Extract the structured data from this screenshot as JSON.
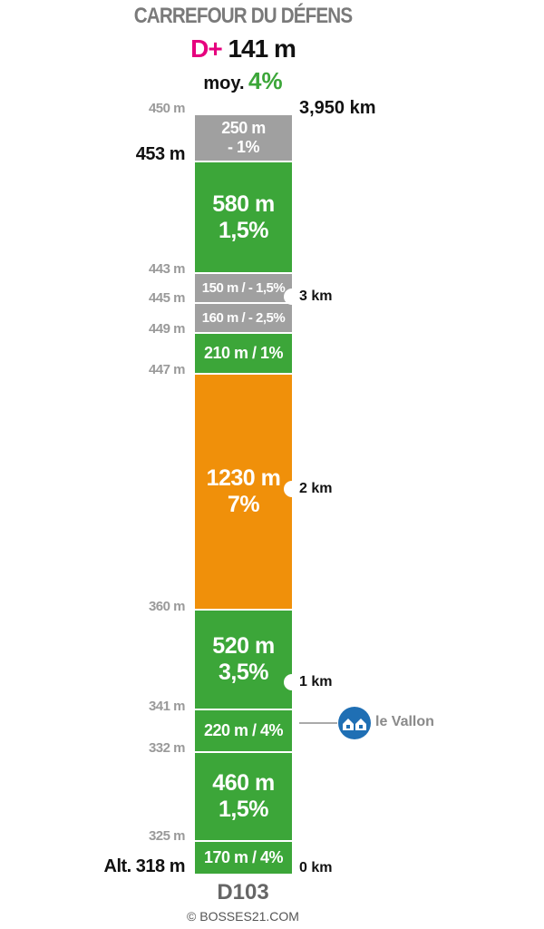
{
  "header": {
    "title": "CARREFOUR DU DÉFENS",
    "gain_prefix": "D+",
    "gain_value": "141 m",
    "avg_label": "moy.",
    "avg_value": "4%"
  },
  "segments": [
    {
      "line1": "250 m",
      "line2": "- 1%",
      "color": "#a0a0a0"
    },
    {
      "line1": "580 m",
      "line2": "1,5%",
      "color": "#3ca639"
    },
    {
      "line1": "150 m / - 1,5%",
      "line2": "",
      "color": "#a0a0a0"
    },
    {
      "line1": "160 m / - 2,5%",
      "line2": "",
      "color": "#a0a0a0"
    },
    {
      "line1": "210 m / 1%",
      "line2": "",
      "color": "#3ca639"
    },
    {
      "line1": "1230 m",
      "line2": "7%",
      "color": "#f0900a"
    },
    {
      "line1": "520 m",
      "line2": "3,5%",
      "color": "#3ca639"
    },
    {
      "line1": "220 m / 4%",
      "line2": "",
      "color": "#3ca639"
    },
    {
      "line1": "460 m",
      "line2": "1,5%",
      "color": "#3ca639"
    },
    {
      "line1": "170 m / 4%",
      "line2": "",
      "color": "#3ca639"
    }
  ],
  "altitudes": [
    "450 m",
    "453 m",
    "443 m",
    "445 m",
    "449 m",
    "447 m",
    "360 m",
    "341 m",
    "332 m",
    "325 m",
    "Alt. 318 m"
  ],
  "distances": [
    "3,950 km",
    "3 km",
    "2 km",
    "1 km",
    "0 km"
  ],
  "landmark": {
    "label": "le Vallon",
    "icon": "houses-icon"
  },
  "footer": {
    "road": "D103",
    "copyright": "© BOSSES21.COM"
  }
}
